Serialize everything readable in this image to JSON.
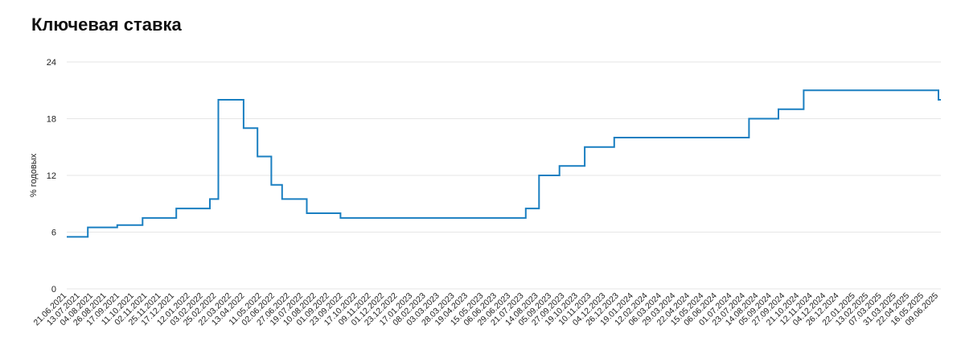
{
  "title": "Ключевая ставка",
  "chart_data": {
    "type": "line",
    "title": "Ключевая ставка",
    "ylabel": "% годовых",
    "xlabel": "",
    "ylim": [
      0,
      24
    ],
    "yticks": [
      0,
      6,
      12,
      18,
      24
    ],
    "grid": true,
    "line_color": "#1a7fc1",
    "x_ticks": [
      "21.06.2021",
      "13.07.2021",
      "04.08.2021",
      "26.08.2021",
      "17.09.2021",
      "11.10.2021",
      "02.11.2021",
      "25.11.2021",
      "17.12.2021",
      "12.01.2022",
      "03.02.2022",
      "25.02.2022",
      "22.03.2022",
      "13.04.2022",
      "11.05.2022",
      "02.06.2022",
      "27.06.2022",
      "19.07.2022",
      "10.08.2022",
      "01.09.2022",
      "23.09.2022",
      "17.10.2022",
      "09.11.2022",
      "01.12.2022",
      "23.12.2022",
      "17.01.2023",
      "08.02.2023",
      "03.03.2023",
      "28.03.2023",
      "19.04.2023",
      "15.05.2023",
      "06.06.2023",
      "29.06.2023",
      "21.07.2023",
      "14.08.2023",
      "05.09.2023",
      "27.09.2023",
      "19.10.2023",
      "10.11.2023",
      "04.12.2023",
      "26.12.2023",
      "19.01.2024",
      "12.02.2024",
      "06.03.2024",
      "29.03.2024",
      "22.04.2024",
      "15.05.2024",
      "06.06.2024",
      "01.07.2024",
      "23.07.2024",
      "14.08.2024",
      "05.09.2024",
      "27.09.2024",
      "21.10.2024",
      "12.11.2024",
      "04.12.2024",
      "26.12.2024",
      "22.01.2025",
      "13.02.2025",
      "07.03.2025",
      "31.03.2025",
      "22.04.2025",
      "16.05.2025",
      "09.06.2025"
    ],
    "series": [
      {
        "steps": [
          {
            "x": "21.06.2021",
            "y": 5.5
          },
          {
            "x": "26.07.2021",
            "y": 6.5
          },
          {
            "x": "13.09.2021",
            "y": 6.75
          },
          {
            "x": "25.10.2021",
            "y": 7.5
          },
          {
            "x": "20.12.2021",
            "y": 8.5
          },
          {
            "x": "14.02.2022",
            "y": 9.5
          },
          {
            "x": "28.02.2022",
            "y": 20
          },
          {
            "x": "11.04.2022",
            "y": 17
          },
          {
            "x": "04.05.2022",
            "y": 14
          },
          {
            "x": "27.05.2022",
            "y": 11
          },
          {
            "x": "14.06.2022",
            "y": 9.5
          },
          {
            "x": "25.07.2022",
            "y": 8
          },
          {
            "x": "19.09.2022",
            "y": 7.5
          },
          {
            "x": "24.07.2023",
            "y": 8.5
          },
          {
            "x": "15.08.2023",
            "y": 12
          },
          {
            "x": "18.09.2023",
            "y": 13
          },
          {
            "x": "30.10.2023",
            "y": 15
          },
          {
            "x": "18.12.2023",
            "y": 16
          },
          {
            "x": "29.07.2024",
            "y": 18
          },
          {
            "x": "16.09.2024",
            "y": 19
          },
          {
            "x": "28.10.2024",
            "y": 21
          },
          {
            "x": "09.06.2025",
            "y": 20
          },
          {
            "x": "13.06.2025",
            "y": 20
          }
        ]
      }
    ]
  }
}
